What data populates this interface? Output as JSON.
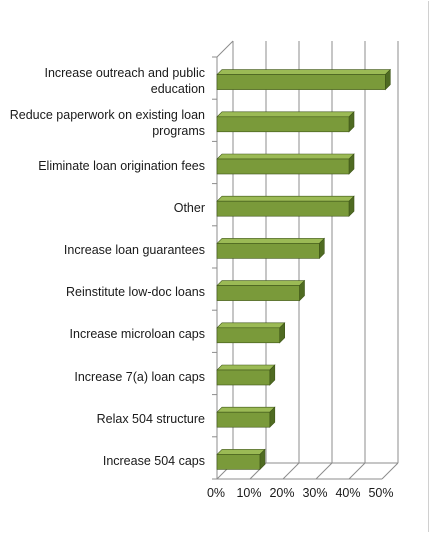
{
  "chart_data": {
    "type": "bar",
    "orientation": "horizontal",
    "categories": [
      "Increase outreach and public education",
      "Reduce paperwork on existing loan programs",
      "Eliminate loan origination fees",
      "Other",
      "Increase loan guarantees",
      "Reinstitute low-doc loans",
      "Increase microloan caps",
      "Increase 7(a) loan caps",
      "Relax 504 structure",
      "Increase 504 caps"
    ],
    "values": [
      51,
      40,
      40,
      40,
      31,
      25,
      19,
      16,
      16,
      13
    ],
    "xlim": [
      0,
      50
    ],
    "xticks": [
      "0%",
      "10%",
      "20%",
      "30%",
      "40%",
      "50%"
    ],
    "grid": true,
    "style": "3d",
    "colors": {
      "bar": "#7a9a3a",
      "bar_top": "#9bba55",
      "bar_side": "#4f6b22",
      "grid": "#8c8c8c"
    },
    "title": "",
    "xlabel": "",
    "ylabel": ""
  }
}
